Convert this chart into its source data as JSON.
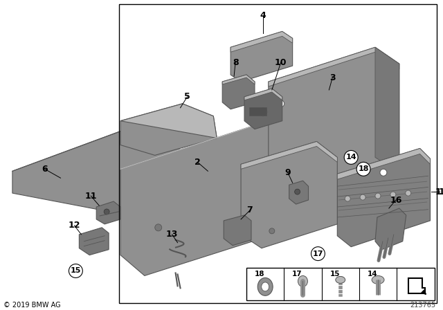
{
  "background_color": "#ffffff",
  "diagram_id": "213765",
  "copyright": "© 2019 BMW AG",
  "fig_width": 6.4,
  "fig_height": 4.48,
  "dpi": 100,
  "gray": "#909090",
  "lgray": "#b8b8b8",
  "dgray": "#555555",
  "mgray": "#787878"
}
